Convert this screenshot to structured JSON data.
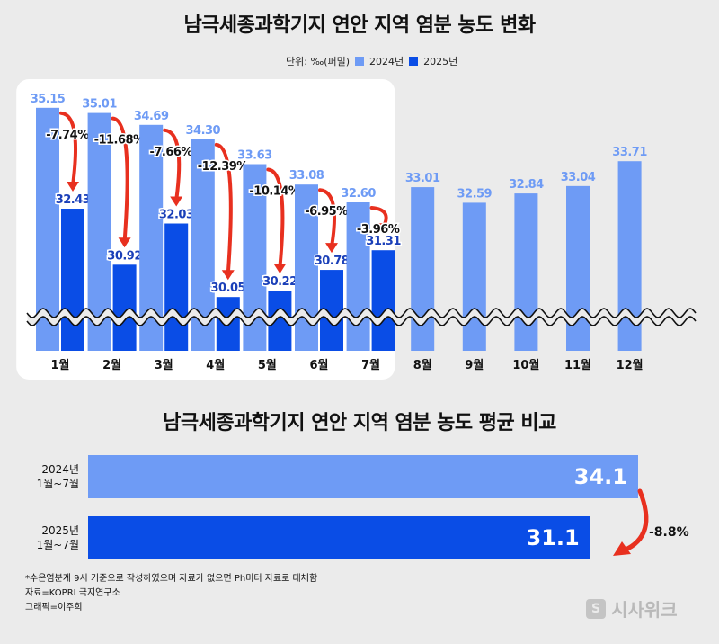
{
  "chart_data": [
    {
      "type": "bar",
      "title": "남극세종과학기지 연안 지역 염분 농도 변화",
      "unit_label": "단위: ‰(퍼밀)",
      "categories": [
        "1월",
        "2월",
        "3월",
        "4월",
        "5월",
        "6월",
        "7월",
        "8월",
        "9월",
        "10월",
        "11월",
        "12월"
      ],
      "series": [
        {
          "name": "2024년",
          "color": "#6e9bf5",
          "values": [
            35.15,
            35.01,
            34.69,
            34.3,
            33.63,
            33.08,
            32.6,
            33.01,
            32.59,
            32.84,
            33.04,
            33.71
          ]
        },
        {
          "name": "2025년",
          "color": "#0a4de6",
          "values": [
            32.43,
            30.92,
            32.03,
            30.05,
            30.22,
            30.78,
            31.31,
            null,
            null,
            null,
            null,
            null
          ]
        }
      ],
      "value_labels": {
        "2024": [
          "35.15",
          "35.01",
          "34.69",
          "34.30",
          "33.63",
          "33.08",
          "32.60",
          "33.01",
          "32.59",
          "32.84",
          "33.04",
          "33.71"
        ],
        "2025": [
          "32.43",
          "30.92",
          "32.03",
          "30.05",
          "30.22",
          "30.78",
          "31.31"
        ]
      },
      "changes": [
        "-7.74%",
        "-11.68%",
        "-7.66%",
        "-12.39%",
        "-10.14%",
        "-6.95%",
        "-3.96%"
      ],
      "axis_break": true,
      "highlighted_months": [
        "1월",
        "2월",
        "3월",
        "4월",
        "5월",
        "6월",
        "7월"
      ],
      "legend_placement": "top-center"
    },
    {
      "type": "bar",
      "orientation": "horizontal",
      "title": "남극세종과학기지 연안 지역 염분 농도 평균 비교",
      "categories": [
        {
          "line1": "2024년",
          "line2": "1월~7월"
        },
        {
          "line1": "2025년",
          "line2": "1월~7월"
        }
      ],
      "values": [
        34.1,
        31.1
      ],
      "value_labels": [
        "34.1",
        "31.1"
      ],
      "colors": [
        "#6e9bf5",
        "#0a4de6"
      ],
      "change": "-8.8%"
    }
  ],
  "notes": [
    "*수온염분계 9시 기준으로 작성하였으며 자료가 없으면 Ph미터 자료로 대체함",
    "자료=KOPRI 극지연구소",
    "그래픽=이주희"
  ],
  "watermark": "시사위크"
}
